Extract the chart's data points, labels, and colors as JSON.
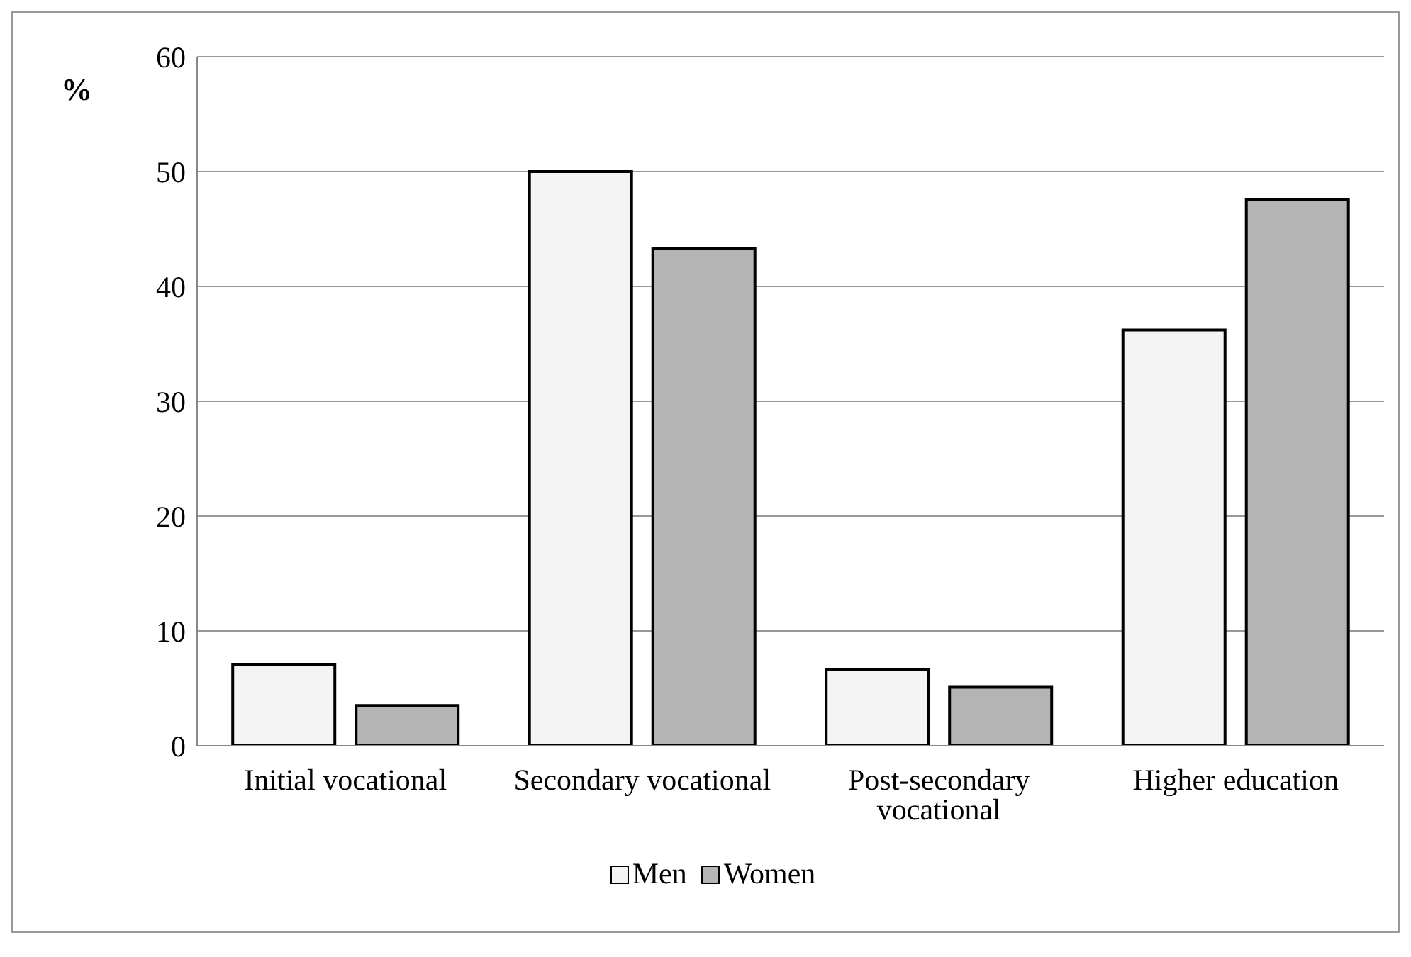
{
  "chart_data": {
    "type": "bar",
    "ylabel": "%",
    "categories": [
      "Initial vocational",
      "Secondary vocational",
      "Post-secondary vocational",
      "Higher education"
    ],
    "series": [
      {
        "name": "Men",
        "color": "#f4f4f4",
        "values": [
          7.1,
          50,
          6.6,
          36.2
        ]
      },
      {
        "name": "Women",
        "color": "#b4b4b4",
        "values": [
          3.5,
          43.3,
          5.1,
          47.6
        ]
      }
    ],
    "ylim": [
      0,
      60
    ],
    "yticks": [
      0,
      10,
      20,
      30,
      40,
      50,
      60
    ],
    "grid": "y",
    "legend": "bottom"
  }
}
